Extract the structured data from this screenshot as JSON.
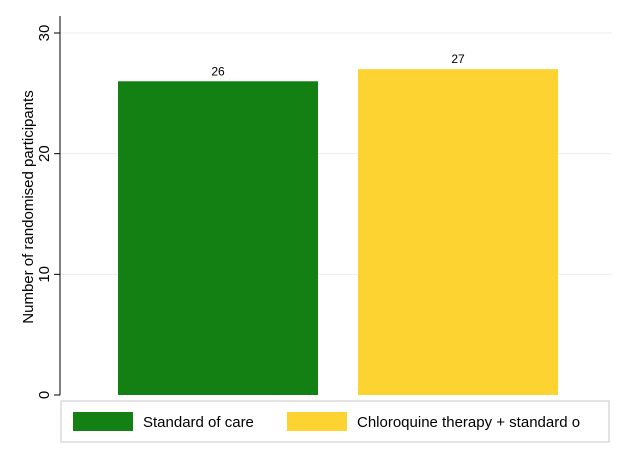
{
  "chart_data": {
    "type": "bar",
    "title": "",
    "xlabel": "",
    "ylabel": "Number of randomised participants",
    "ylim": [
      0,
      30
    ],
    "yticks": [
      0,
      10,
      20,
      30
    ],
    "grid": true,
    "legend_placement": "bottom",
    "series": [
      {
        "name": "Standard of care",
        "value": 26,
        "label": "26",
        "color": "#128012"
      },
      {
        "name": "Chloroquine therapy + standard o",
        "value": 27,
        "label": "27",
        "color": "#FDD331"
      }
    ]
  }
}
